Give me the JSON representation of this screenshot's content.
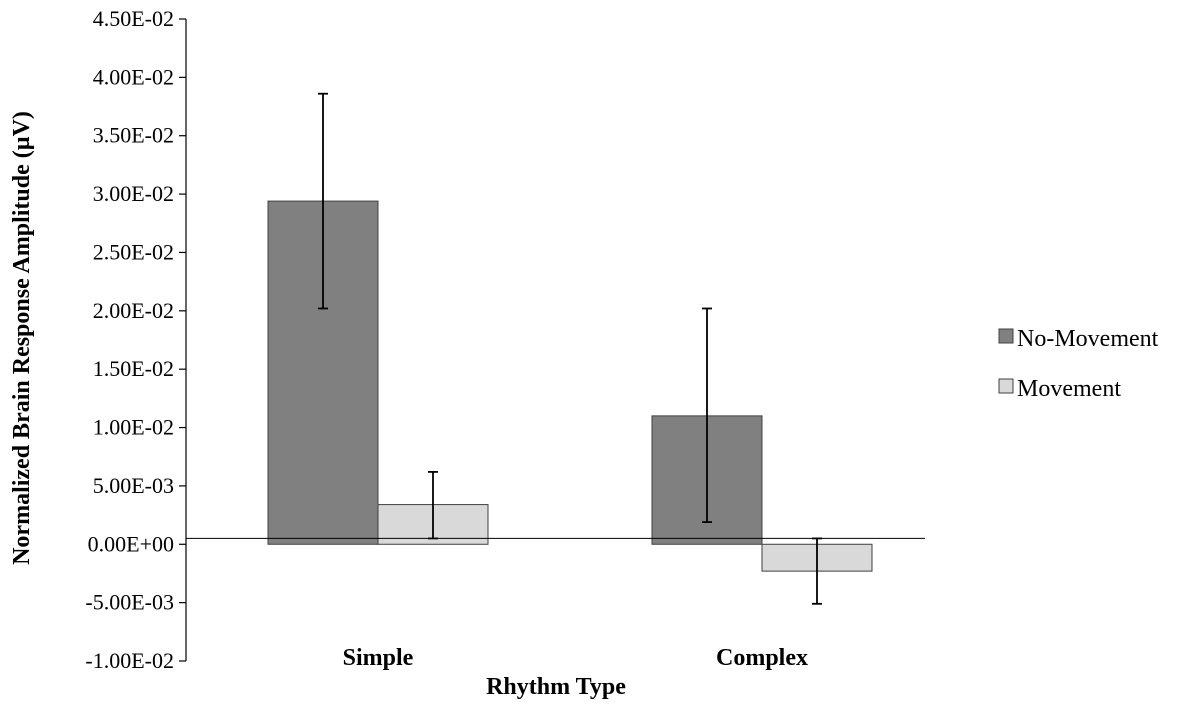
{
  "chart_data": {
    "type": "bar",
    "title": "",
    "xlabel": "Rhythm Type",
    "ylabel": "Normalized Brain Response Amplitude (µV)",
    "categories": [
      "Simple",
      "Complex"
    ],
    "ylim": [
      -0.01,
      0.045
    ],
    "ytick_values": [
      -0.01,
      -0.005,
      0,
      0.005,
      0.01,
      0.015,
      0.02,
      0.025,
      0.03,
      0.035,
      0.04,
      0.045
    ],
    "ytick_labels": [
      "-1.00E-02",
      "-5.00E-03",
      "0.00E+00",
      "5.00E-03",
      "1.00E-02",
      "1.50E-02",
      "2.00E-02",
      "2.50E-02",
      "3.00E-02",
      "3.50E-02",
      "4.00E-02",
      "4.50E-02"
    ],
    "series": [
      {
        "name": "No-Movement",
        "values": [
          0.0294,
          0.011
        ],
        "error_low": [
          0.0202,
          0.0019
        ],
        "error_high": [
          0.0386,
          0.0202
        ]
      },
      {
        "name": "Movement",
        "values": [
          0.0034,
          -0.0023
        ],
        "error_low": [
          0.0005,
          -0.0051
        ],
        "error_high": [
          0.0062,
          0.0005
        ]
      }
    ],
    "colors": {
      "No-Movement": "#808080",
      "Movement": "#d9d9d9",
      "outline": "#404040"
    },
    "reference_line_value": 0.0005,
    "grid": false,
    "legend_position": "right"
  }
}
